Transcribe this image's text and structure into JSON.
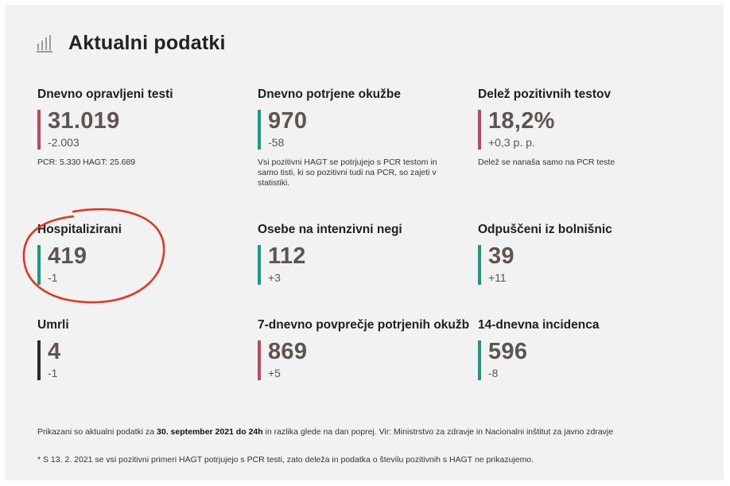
{
  "header": {
    "title": "Aktualni podatki",
    "icon": "bar-chart-icon"
  },
  "colors": {
    "red": "#c0485c",
    "green": "#1a9a7f",
    "dark": "#2b2b2b",
    "annotation": "#e8301c"
  },
  "cards": [
    {
      "title": "Dnevno opravljeni testi",
      "value": "31.019",
      "delta": "-2.003",
      "note": "PCR: 5.330 HAGT: 25.689",
      "accent": "red"
    },
    {
      "title": "Dnevno potrjene okužbe",
      "value": "970",
      "delta": "-58",
      "note": "Vsi pozitivni HAGT se potrjujejo s PCR testom in samo tisti, ki so pozitivni tudi na PCR, so zajeti v statistiki.",
      "accent": "green"
    },
    {
      "title": "Delež pozitivnih testov",
      "value": "18,2%",
      "delta": "+0,3 p. p.",
      "note": "Delež se nanaša samo na PCR teste",
      "accent": "red"
    },
    {
      "title": "Hospitalizirani",
      "value": "419",
      "delta": "-1",
      "accent": "green"
    },
    {
      "title": "Osebe na intenzivni negi",
      "value": "112",
      "delta": "+3",
      "accent": "green"
    },
    {
      "title": "Odpuščeni iz bolnišnic",
      "value": "39",
      "delta": "+11",
      "accent": "green"
    },
    {
      "title": "Umrli",
      "value": "4",
      "delta": "-1",
      "accent": "dark"
    },
    {
      "title": "7-dnevno povprečje potrjenih okužb",
      "value": "869",
      "delta": "+5",
      "accent": "red"
    },
    {
      "title": "14-dnevna incidenca",
      "value": "596",
      "delta": "-8",
      "accent": "green"
    }
  ],
  "footer": {
    "line1_pre": "Prikazani so aktualni podatki za ",
    "line1_bold": "30. september 2021 do 24h",
    "line1_post": " in razlika glede na dan poprej. Vir: Ministrstvo za zdravje in Nacionalni inštitut za javno zdravje",
    "line2": "* S 13. 2. 2021 se vsi pozitivni primeri HAGT potrjujejo s PCR testi, zato deleža in podatka o številu pozitivnih s HAGT ne prikazujemo."
  }
}
